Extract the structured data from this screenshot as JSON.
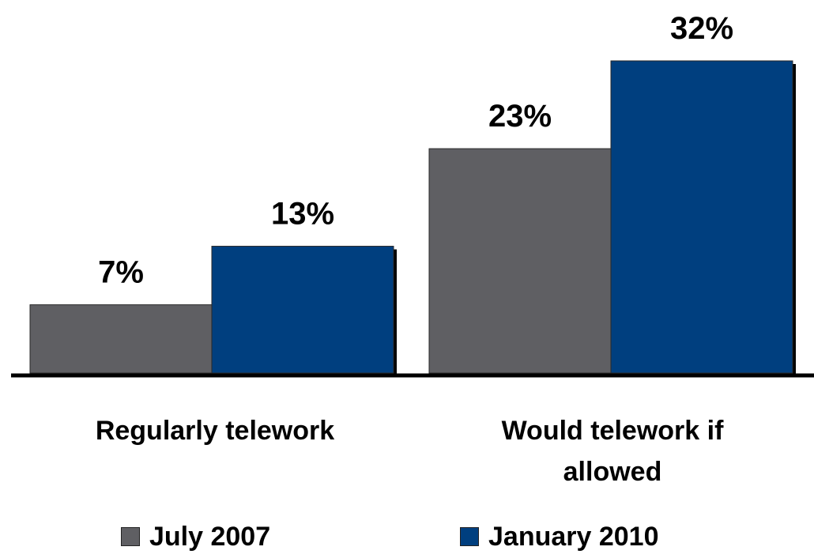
{
  "chart_data": {
    "type": "bar",
    "categories": [
      "Regularly telework",
      "Would telework if allowed"
    ],
    "series": [
      {
        "name": "July 2007",
        "values": [
          7,
          23
        ],
        "labels": [
          "7%",
          "23%"
        ],
        "color": "#5f5f63"
      },
      {
        "name": "January 2010",
        "values": [
          13,
          32
        ],
        "labels": [
          "13%",
          "32%"
        ],
        "color": "#003f7f"
      }
    ],
    "unit": "%",
    "ylim": [
      0,
      32
    ],
    "grid": false,
    "legend_position": "bottom"
  }
}
